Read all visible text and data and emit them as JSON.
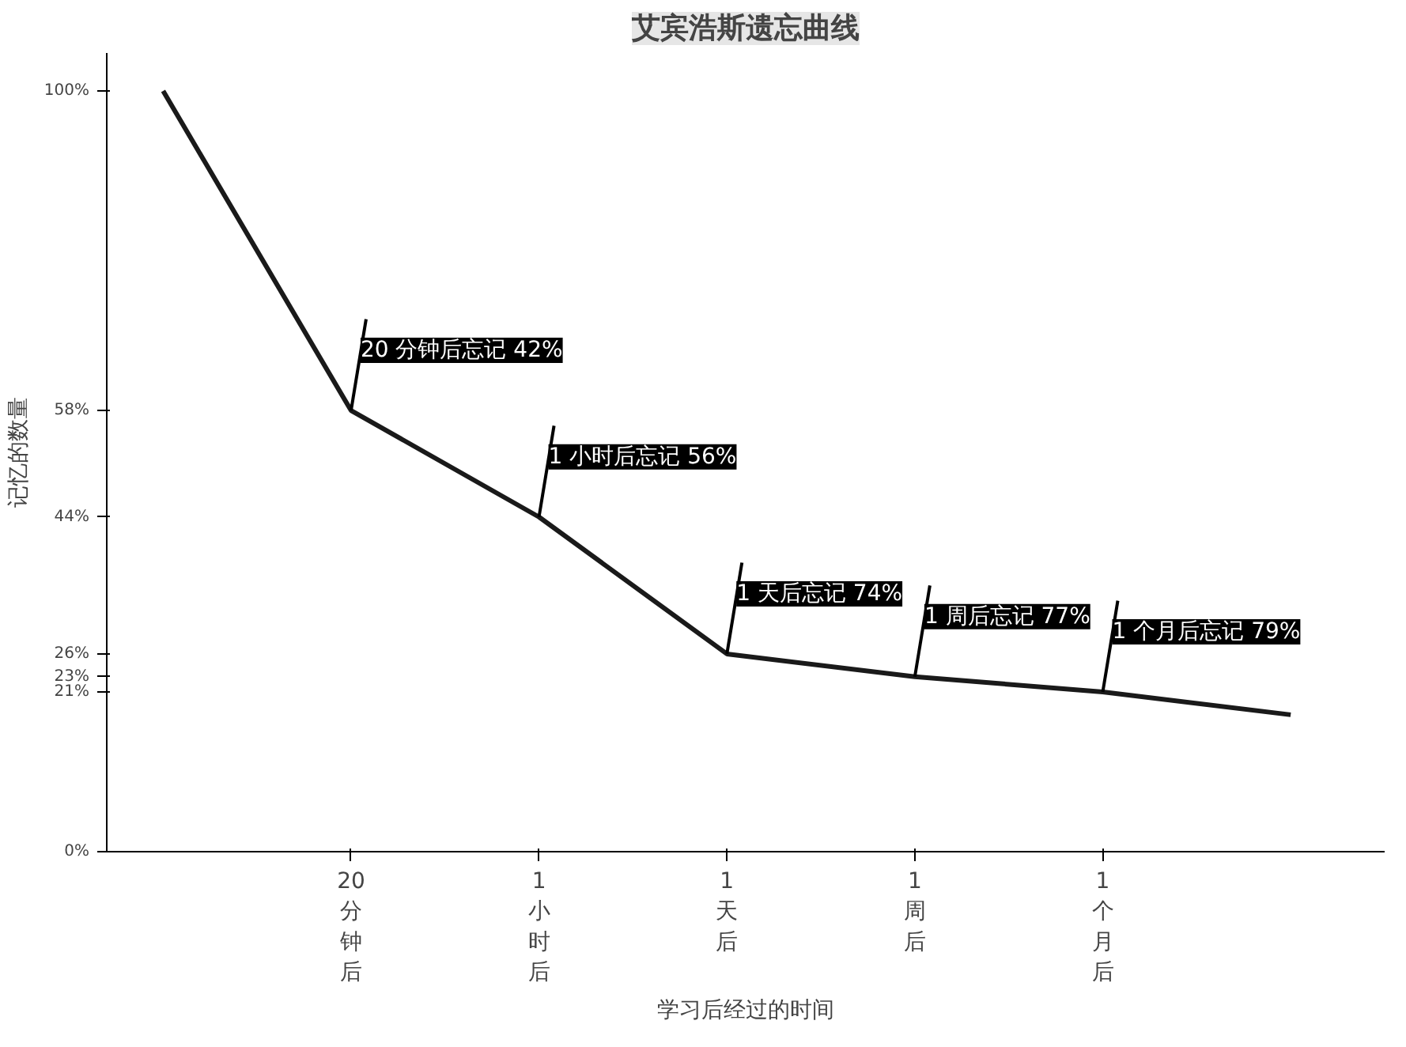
{
  "chart_data": {
    "type": "line",
    "title": "艾宾浩斯遗忘曲线",
    "ylabel": "记忆的数量",
    "xlabel": "学习后经过的时间",
    "categories": [
      null,
      "20分钟后",
      "1小时后",
      "1天后",
      "1周后",
      "1个月后",
      null
    ],
    "series": [
      {
        "color": "#1a1a1a",
        "values": [
          100,
          58,
          44,
          26,
          23,
          21,
          18
        ]
      }
    ],
    "ylim": [
      0,
      105
    ],
    "yticks": [
      {
        "value": 0,
        "label": "0%"
      },
      {
        "value": 21,
        "label": "21%"
      },
      {
        "value": 23,
        "label": "23%"
      },
      {
        "value": 26,
        "label": "26%"
      },
      {
        "value": 44,
        "label": "44%"
      },
      {
        "value": 58,
        "label": "58%"
      },
      {
        "value": 100,
        "label": "100%"
      }
    ],
    "annotations": [
      {
        "text": "20 分钟后忘记 42%",
        "x": "20分钟后",
        "y": 58
      },
      {
        "text": "1 小时后忘记 56%",
        "x": "1小时后",
        "y": 44
      },
      {
        "text": "1 天后忘记 74%",
        "x": "1天后",
        "y": 26
      },
      {
        "text": "1 周后忘记 77%",
        "x": "1周后",
        "y": 23
      },
      {
        "text": "1 个月后忘记 79%",
        "x": "1个月后",
        "y": 21
      }
    ],
    "grid": false,
    "marker": "none",
    "line_style": "solid"
  }
}
